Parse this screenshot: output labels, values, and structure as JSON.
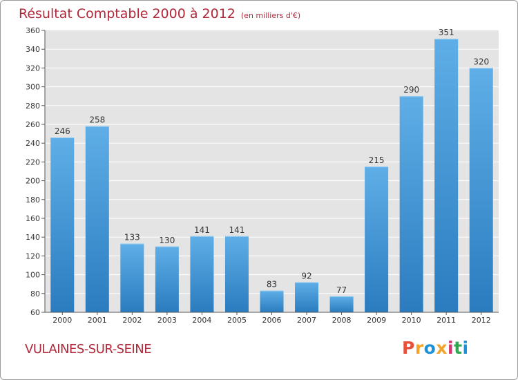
{
  "header": {
    "title": "Résultat Comptable 2000 à 2012",
    "subtitle": "(en milliers d'€)"
  },
  "footer": {
    "location": "VULAINES-SUR-SEINE",
    "logo_text": "Proxiti",
    "logo_colors": [
      "#e8503a",
      "#f2a32c",
      "#1e90d6",
      "#f2a32c",
      "#d6336c",
      "#2fa84f",
      "#1e90d6"
    ]
  },
  "colors": {
    "bar_top": "#5faee7",
    "bar_bottom": "#2a7cbf",
    "plot_background": "#e4e4e4",
    "grid": "#ffffff",
    "title": "#b0283a"
  },
  "chart_data": {
    "type": "bar",
    "title": "Résultat Comptable 2000 à 2012",
    "subtitle": "(en milliers d'€)",
    "categories": [
      "2000",
      "2001",
      "2002",
      "2003",
      "2004",
      "2005",
      "2006",
      "2007",
      "2008",
      "2009",
      "2010",
      "2011",
      "2012"
    ],
    "values": [
      246,
      258,
      133,
      130,
      141,
      141,
      83,
      92,
      77,
      215,
      290,
      351,
      320
    ],
    "ylim": [
      60,
      360
    ],
    "yticks": [
      60,
      80,
      100,
      120,
      140,
      160,
      180,
      200,
      220,
      240,
      260,
      280,
      300,
      320,
      340,
      360
    ],
    "grid": true,
    "xlabel": "",
    "ylabel": ""
  }
}
